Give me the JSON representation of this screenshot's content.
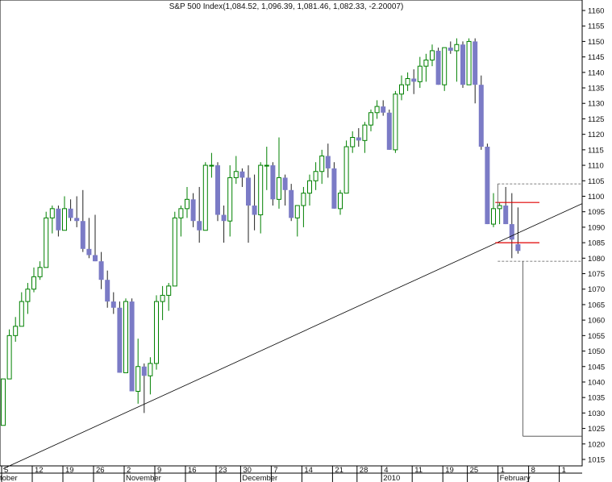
{
  "chart_data": {
    "type": "candlestick",
    "title": "S&P 500 Index(1,084.52, 1,096.39, 1,081.46, 1,082.33, -2.20007)",
    "ylim": [
      1013,
      1163
    ],
    "y_ticks": [
      1015,
      1020,
      1025,
      1030,
      1035,
      1040,
      1045,
      1050,
      1055,
      1060,
      1065,
      1070,
      1075,
      1080,
      1085,
      1090,
      1095,
      1100,
      1105,
      1110,
      1115,
      1120,
      1125,
      1130,
      1135,
      1140,
      1145,
      1150,
      1155,
      1160
    ],
    "y_tick_labels": [
      "1015",
      "1020",
      "1025",
      "1030",
      "1035",
      "1040",
      "1045",
      "1050",
      "1055",
      "1060",
      "1065",
      "1070",
      "1075",
      "1080",
      "1085",
      "1090",
      "1095",
      "1100",
      "1105",
      "1110",
      "1115",
      "1120",
      "1125",
      "1130",
      "1135",
      "1140",
      "1145",
      "1150",
      "1155",
      "1160"
    ],
    "x_day_labels": [
      {
        "label": "5",
        "i": 0
      },
      {
        "label": "12",
        "i": 5
      },
      {
        "label": "19",
        "i": 10
      },
      {
        "label": "26",
        "i": 15
      },
      {
        "label": "2",
        "i": 20
      },
      {
        "label": "9",
        "i": 25
      },
      {
        "label": "16",
        "i": 30
      },
      {
        "label": "23",
        "i": 35
      },
      {
        "label": "30",
        "i": 39
      },
      {
        "label": "7",
        "i": 44
      },
      {
        "label": "14",
        "i": 49
      },
      {
        "label": "21",
        "i": 54
      },
      {
        "label": "28",
        "i": 58
      },
      {
        "label": "4",
        "i": 62
      },
      {
        "label": "11",
        "i": 67
      },
      {
        "label": "19",
        "i": 72
      },
      {
        "label": "25",
        "i": 76
      },
      {
        "label": "1",
        "i": 81
      },
      {
        "label": "8",
        "i": 86
      },
      {
        "label": "1",
        "i": 91
      }
    ],
    "x_month_labels": [
      {
        "label": "tober",
        "i": -0.6
      },
      {
        "label": "November",
        "i": 20
      },
      {
        "label": "December",
        "i": 39
      },
      {
        "label": "2010",
        "i": 62
      },
      {
        "label": "February",
        "i": 81
      }
    ],
    "candles": [
      {
        "o": 1026,
        "h": 1041,
        "l": 1026,
        "c": 1041
      },
      {
        "o": 1041,
        "h": 1057,
        "l": 1041,
        "c": 1055
      },
      {
        "o": 1055,
        "h": 1061,
        "l": 1053,
        "c": 1058
      },
      {
        "o": 1058,
        "h": 1069,
        "l": 1058,
        "c": 1066
      },
      {
        "o": 1066,
        "h": 1072,
        "l": 1062,
        "c": 1070
      },
      {
        "o": 1070,
        "h": 1077,
        "l": 1069,
        "c": 1074
      },
      {
        "o": 1074,
        "h": 1079,
        "l": 1073,
        "c": 1077
      },
      {
        "o": 1077,
        "h": 1095,
        "l": 1077,
        "c": 1093
      },
      {
        "o": 1093,
        "h": 1097,
        "l": 1088,
        "c": 1096
      },
      {
        "o": 1096,
        "h": 1097,
        "l": 1087,
        "c": 1089
      },
      {
        "o": 1089,
        "h": 1100,
        "l": 1089,
        "c": 1096
      },
      {
        "o": 1096,
        "h": 1099,
        "l": 1092,
        "c": 1093
      },
      {
        "o": 1093,
        "h": 1100,
        "l": 1090,
        "c": 1092
      },
      {
        "o": 1092,
        "h": 1102,
        "l": 1082,
        "c": 1083
      },
      {
        "o": 1083,
        "h": 1093,
        "l": 1080,
        "c": 1081
      },
      {
        "o": 1081,
        "h": 1094,
        "l": 1079,
        "c": 1079
      },
      {
        "o": 1079,
        "h": 1082,
        "l": 1070,
        "c": 1073
      },
      {
        "o": 1073,
        "h": 1076,
        "l": 1064,
        "c": 1066
      },
      {
        "o": 1066,
        "h": 1069,
        "l": 1062,
        "c": 1064
      },
      {
        "o": 1064,
        "h": 1066,
        "l": 1043,
        "c": 1043
      },
      {
        "o": 1043,
        "h": 1067,
        "l": 1043,
        "c": 1066
      },
      {
        "o": 1066,
        "h": 1067,
        "l": 1037,
        "c": 1037
      },
      {
        "o": 1037,
        "h": 1054,
        "l": 1033,
        "c": 1045
      },
      {
        "o": 1045,
        "h": 1046,
        "l": 1030,
        "c": 1042
      },
      {
        "o": 1042,
        "h": 1048,
        "l": 1036,
        "c": 1046
      },
      {
        "o": 1046,
        "h": 1068,
        "l": 1044,
        "c": 1066
      },
      {
        "o": 1066,
        "h": 1071,
        "l": 1060,
        "c": 1068
      },
      {
        "o": 1068,
        "h": 1072,
        "l": 1063,
        "c": 1071
      },
      {
        "o": 1071,
        "h": 1095,
        "l": 1071,
        "c": 1093
      },
      {
        "o": 1093,
        "h": 1097,
        "l": 1087,
        "c": 1096
      },
      {
        "o": 1096,
        "h": 1103,
        "l": 1093,
        "c": 1099
      },
      {
        "o": 1099,
        "h": 1101,
        "l": 1090,
        "c": 1092
      },
      {
        "o": 1092,
        "h": 1103,
        "l": 1085,
        "c": 1089
      },
      {
        "o": 1089,
        "h": 1111,
        "l": 1089,
        "c": 1110
      },
      {
        "o": 1110,
        "h": 1114,
        "l": 1106,
        "c": 1110
      },
      {
        "o": 1110,
        "h": 1111,
        "l": 1092,
        "c": 1094
      },
      {
        "o": 1094,
        "h": 1097,
        "l": 1085,
        "c": 1092
      },
      {
        "o": 1092,
        "h": 1110,
        "l": 1087,
        "c": 1106
      },
      {
        "o": 1106,
        "h": 1113,
        "l": 1104,
        "c": 1108
      },
      {
        "o": 1108,
        "h": 1109,
        "l": 1103,
        "c": 1106
      },
      {
        "o": 1106,
        "h": 1110,
        "l": 1085,
        "c": 1097
      },
      {
        "o": 1097,
        "h": 1107,
        "l": 1089,
        "c": 1094
      },
      {
        "o": 1094,
        "h": 1111,
        "l": 1088,
        "c": 1110
      },
      {
        "o": 1110,
        "h": 1116,
        "l": 1102,
        "c": 1110
      },
      {
        "o": 1110,
        "h": 1111,
        "l": 1097,
        "c": 1099
      },
      {
        "o": 1099,
        "h": 1119,
        "l": 1096,
        "c": 1106
      },
      {
        "o": 1106,
        "h": 1107,
        "l": 1097,
        "c": 1102
      },
      {
        "o": 1102,
        "h": 1104,
        "l": 1092,
        "c": 1093
      },
      {
        "o": 1093,
        "h": 1097,
        "l": 1087,
        "c": 1097
      },
      {
        "o": 1097,
        "h": 1103,
        "l": 1090,
        "c": 1101
      },
      {
        "o": 1101,
        "h": 1107,
        "l": 1097,
        "c": 1105
      },
      {
        "o": 1105,
        "h": 1111,
        "l": 1102,
        "c": 1108
      },
      {
        "o": 1108,
        "h": 1115,
        "l": 1104,
        "c": 1113
      },
      {
        "o": 1113,
        "h": 1117,
        "l": 1106,
        "c": 1109
      },
      {
        "o": 1109,
        "h": 1111,
        "l": 1096,
        "c": 1096
      },
      {
        "o": 1096,
        "h": 1102,
        "l": 1094,
        "c": 1101
      },
      {
        "o": 1101,
        "h": 1118,
        "l": 1101,
        "c": 1116
      },
      {
        "o": 1116,
        "h": 1121,
        "l": 1114,
        "c": 1119
      },
      {
        "o": 1119,
        "h": 1122,
        "l": 1116,
        "c": 1118
      },
      {
        "o": 1118,
        "h": 1124,
        "l": 1114,
        "c": 1123
      },
      {
        "o": 1123,
        "h": 1128,
        "l": 1121,
        "c": 1127
      },
      {
        "o": 1127,
        "h": 1131,
        "l": 1125,
        "c": 1129
      },
      {
        "o": 1129,
        "h": 1131,
        "l": 1126,
        "c": 1127
      },
      {
        "o": 1127,
        "h": 1128,
        "l": 1115,
        "c": 1115
      },
      {
        "o": 1115,
        "h": 1134,
        "l": 1114,
        "c": 1133
      },
      {
        "o": 1133,
        "h": 1139,
        "l": 1131,
        "c": 1136
      },
      {
        "o": 1136,
        "h": 1140,
        "l": 1134,
        "c": 1138
      },
      {
        "o": 1138,
        "h": 1141,
        "l": 1133,
        "c": 1137
      },
      {
        "o": 1137,
        "h": 1145,
        "l": 1135,
        "c": 1142
      },
      {
        "o": 1142,
        "h": 1146,
        "l": 1137,
        "c": 1144
      },
      {
        "o": 1144,
        "h": 1149,
        "l": 1142,
        "c": 1147
      },
      {
        "o": 1147,
        "h": 1148,
        "l": 1136,
        "c": 1136
      },
      {
        "o": 1136,
        "h": 1147,
        "l": 1134,
        "c": 1148
      },
      {
        "o": 1148,
        "h": 1150,
        "l": 1146,
        "c": 1147
      },
      {
        "o": 1147,
        "h": 1151,
        "l": 1137,
        "c": 1149
      },
      {
        "o": 1149,
        "h": 1150,
        "l": 1135,
        "c": 1136
      },
      {
        "o": 1136,
        "h": 1151,
        "l": 1136,
        "c": 1150
      },
      {
        "o": 1150,
        "h": 1151,
        "l": 1130,
        "c": 1136
      },
      {
        "o": 1136,
        "h": 1139,
        "l": 1115,
        "c": 1116
      },
      {
        "o": 1116,
        "h": 1117,
        "l": 1091,
        "c": 1091
      },
      {
        "o": 1091,
        "h": 1101,
        "l": 1090,
        "c": 1096
      },
      {
        "o": 1096,
        "h": 1098,
        "l": 1091,
        "c": 1097
      },
      {
        "o": 1097,
        "h": 1103,
        "l": 1091,
        "c": 1091
      },
      {
        "o": 1091,
        "h": 1101,
        "l": 1080,
        "c": 1086
      },
      {
        "o": 1084.52,
        "h": 1096.39,
        "l": 1081.46,
        "c": 1082.33
      }
    ],
    "trendline": {
      "from": {
        "i": 0,
        "v": 1012
      },
      "to": {
        "i": 96,
        "v": 1099
      }
    },
    "red_lines": [
      1098,
      1085
    ],
    "dashed_levels": [
      1104,
      1079
    ],
    "projection_target": 1022.5
  },
  "colors": {
    "up": "#008000",
    "down": "#7b7bc6",
    "wick": "#222222",
    "trend": "#000000",
    "red": "#e00000",
    "dash": "#555555"
  }
}
